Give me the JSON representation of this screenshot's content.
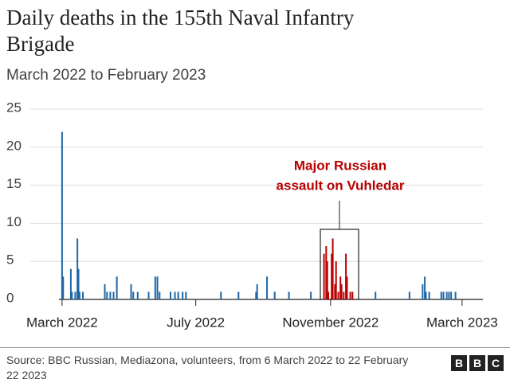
{
  "chart_data": {
    "type": "bar",
    "title": "Daily deaths in the 155th Naval Infantry Brigade",
    "subtitle": "March 2022 to February 2023",
    "annotation": [
      "Major Russian",
      "assault on Vuhledar"
    ],
    "source": "Source: BBC Russian, Mediazona, volunteers, from 6 March 2022 to 22 February 22 2023",
    "logo": [
      "B",
      "B",
      "C"
    ],
    "xlim": [
      -29,
      384
    ],
    "xticks": [
      {
        "value": 0,
        "label": "March 2022"
      },
      {
        "value": 122,
        "label": "July 2022"
      },
      {
        "value": 245,
        "label": "November 2022"
      },
      {
        "value": 365,
        "label": "March 2023"
      }
    ],
    "ylim": [
      0,
      25
    ],
    "yticks": [
      0,
      5,
      10,
      15,
      20,
      25
    ],
    "grid": true,
    "series": [
      {
        "color": "#1f66a6",
        "x": [
          0,
          1,
          8,
          9,
          12,
          14,
          15,
          16,
          19,
          39,
          41,
          44,
          47,
          50,
          63,
          65,
          69,
          79,
          85,
          87,
          89,
          99,
          103,
          106,
          110,
          113,
          145,
          161,
          177,
          178,
          187,
          194,
          207,
          227,
          286,
          317,
          329,
          331,
          332,
          335,
          346,
          348,
          351,
          353,
          355,
          359
        ],
        "values": [
          22,
          3,
          4,
          1,
          1,
          8,
          4,
          1,
          1,
          2,
          1,
          1,
          1,
          3,
          2,
          1,
          1,
          1,
          3,
          3,
          1,
          1,
          1,
          1,
          1,
          1,
          1,
          1,
          1,
          2,
          3,
          1,
          1,
          1,
          1,
          1,
          2,
          3,
          1,
          1,
          1,
          1,
          1,
          1,
          1,
          1
        ]
      },
      {
        "color": "#b80000",
        "x": [
          239,
          241,
          242,
          243,
          246,
          247,
          249,
          250,
          252,
          254,
          255,
          257,
          259,
          260,
          263,
          265
        ],
        "values": [
          6,
          7,
          5,
          1,
          6,
          8,
          2,
          5,
          1,
          3,
          2,
          1,
          6,
          3,
          1,
          1
        ]
      }
    ]
  }
}
